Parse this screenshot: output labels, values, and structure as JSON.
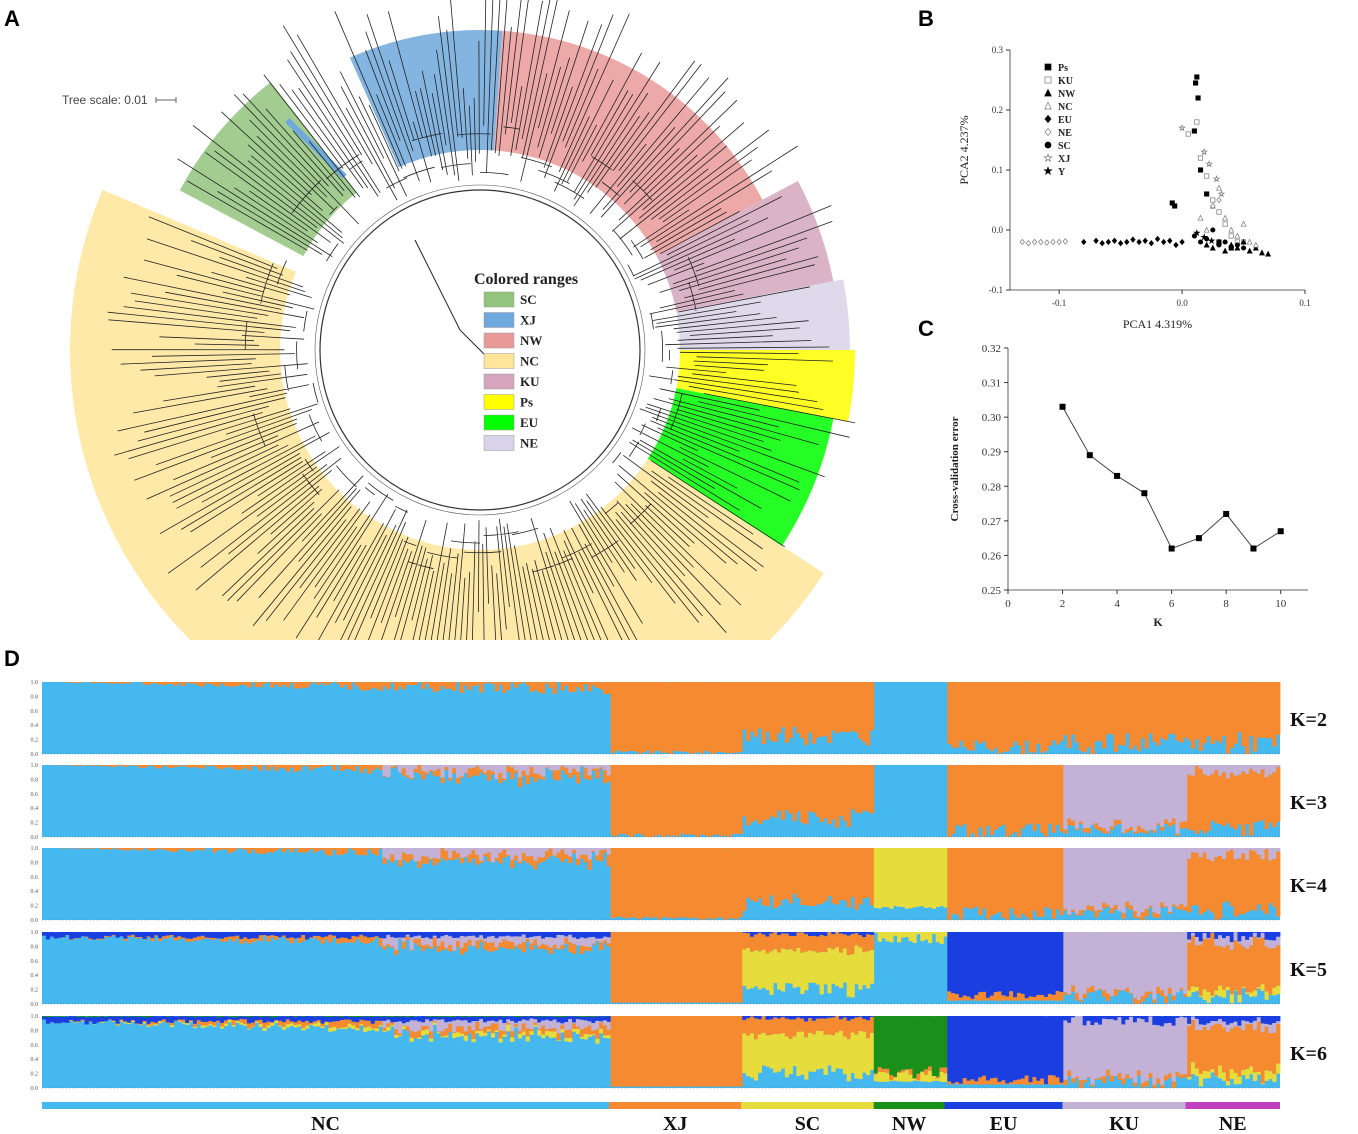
{
  "panels": {
    "a": "A",
    "b": "B",
    "c": "C",
    "d": "D"
  },
  "tree": {
    "scale_label": "Tree scale: 0.01",
    "legend_title": "Colored ranges",
    "legend": [
      {
        "label": "SC",
        "color": "#93c47d"
      },
      {
        "label": "XJ",
        "color": "#6fa8dc"
      },
      {
        "label": "NW",
        "color": "#ea9999"
      },
      {
        "label": "NC",
        "color": "#ffe599"
      },
      {
        "label": "KU",
        "color": "#d5a6bd"
      },
      {
        "label": "Ps",
        "color": "#ffff00"
      },
      {
        "label": "EU",
        "color": "#00ff00"
      },
      {
        "label": "NE",
        "color": "#d9d2e9"
      }
    ]
  },
  "chart_data": [
    {
      "type": "scatter",
      "title": "",
      "xlabel": "PCA1  4.319%",
      "ylabel": "PCA2 4.237%",
      "xlim": [
        -0.14,
        0.1
      ],
      "ylim": [
        -0.1,
        0.3
      ],
      "xticks": [
        -0.1,
        0,
        0.1
      ],
      "xtick_labels": [
        "-0.1",
        "0.0",
        "0.1"
      ],
      "yticks": [
        -0.1,
        0,
        0.1,
        0.2,
        0.3
      ],
      "ytick_labels": [
        "-0.1",
        "0.0",
        "0.1",
        "0.2",
        "0.3"
      ],
      "legend": [
        {
          "label": "Ps",
          "marker": "square-filled"
        },
        {
          "label": "KU",
          "marker": "square-open"
        },
        {
          "label": "NW",
          "marker": "triangle-filled"
        },
        {
          "label": "NC",
          "marker": "triangle-open"
        },
        {
          "label": "EU",
          "marker": "diamond-filled"
        },
        {
          "label": "NE",
          "marker": "diamond-open"
        },
        {
          "label": "SC",
          "marker": "circle-filled"
        },
        {
          "label": "XJ",
          "marker": "star-open"
        },
        {
          "label": "Y",
          "marker": "star-filled"
        }
      ],
      "series": [
        {
          "name": "Ps",
          "marker": "square-filled",
          "points": [
            [
              0.012,
              0.255
            ],
            [
              0.011,
              0.245
            ],
            [
              0.013,
              0.22
            ],
            [
              0.01,
              0.165
            ],
            [
              -0.008,
              0.045
            ],
            [
              -0.006,
              0.04
            ],
            [
              0.015,
              0.1
            ],
            [
              0.02,
              0.06
            ],
            [
              0.03,
              -0.02
            ],
            [
              0.04,
              -0.03
            ]
          ]
        },
        {
          "name": "KU",
          "marker": "square-open",
          "points": [
            [
              0.005,
              0.16
            ],
            [
              0.012,
              0.18
            ],
            [
              0.015,
              0.12
            ],
            [
              0.02,
              0.09
            ],
            [
              0.025,
              0.05
            ],
            [
              0.03,
              0.03
            ],
            [
              0.035,
              0.01
            ],
            [
              0.04,
              -0.01
            ],
            [
              0.045,
              -0.02
            ],
            [
              0.05,
              -0.02
            ]
          ]
        },
        {
          "name": "NW",
          "marker": "triangle-filled",
          "points": [
            [
              0.02,
              -0.025
            ],
            [
              0.025,
              -0.03
            ],
            [
              0.03,
              -0.02
            ],
            [
              0.035,
              -0.035
            ],
            [
              0.04,
              -0.025
            ],
            [
              0.045,
              -0.03
            ],
            [
              0.05,
              -0.02
            ],
            [
              0.055,
              -0.035
            ],
            [
              0.06,
              -0.03
            ],
            [
              0.065,
              -0.038
            ],
            [
              0.07,
              -0.04
            ]
          ]
        },
        {
          "name": "NC",
          "marker": "triangle-open",
          "points": [
            [
              0.015,
              0.02
            ],
            [
              0.02,
              0.0
            ],
            [
              0.025,
              0.04
            ],
            [
              0.03,
              0.07
            ],
            [
              0.035,
              0.02
            ],
            [
              0.04,
              0.0
            ],
            [
              0.045,
              -0.01
            ],
            [
              0.05,
              0.01
            ],
            [
              0.055,
              -0.02
            ],
            [
              0.06,
              -0.025
            ]
          ]
        },
        {
          "name": "EU",
          "marker": "diamond-filled",
          "points": [
            [
              -0.08,
              -0.02
            ],
            [
              -0.07,
              -0.018
            ],
            [
              -0.065,
              -0.022
            ],
            [
              -0.06,
              -0.02
            ],
            [
              -0.055,
              -0.018
            ],
            [
              -0.05,
              -0.022
            ],
            [
              -0.045,
              -0.02
            ],
            [
              -0.04,
              -0.016
            ],
            [
              -0.035,
              -0.02
            ],
            [
              -0.03,
              -0.018
            ],
            [
              -0.025,
              -0.022
            ],
            [
              -0.02,
              -0.015
            ],
            [
              -0.015,
              -0.02
            ],
            [
              -0.01,
              -0.018
            ],
            [
              -0.005,
              -0.025
            ],
            [
              0.0,
              -0.02
            ]
          ]
        },
        {
          "name": "NE",
          "marker": "diamond-open",
          "points": [
            [
              -0.13,
              -0.02
            ],
            [
              -0.125,
              -0.022
            ],
            [
              -0.12,
              -0.02
            ],
            [
              -0.115,
              -0.02
            ],
            [
              -0.11,
              -0.021
            ],
            [
              -0.105,
              -0.02
            ],
            [
              -0.1,
              -0.02
            ],
            [
              -0.095,
              -0.019
            ],
            [
              0.025,
              0.04
            ],
            [
              0.03,
              0.05
            ]
          ]
        },
        {
          "name": "SC",
          "marker": "circle-filled",
          "points": [
            [
              0.01,
              -0.01
            ],
            [
              0.015,
              -0.02
            ],
            [
              0.02,
              -0.015
            ],
            [
              0.025,
              0.0
            ],
            [
              0.03,
              -0.025
            ],
            [
              0.035,
              -0.02
            ],
            [
              0.04,
              -0.028
            ],
            [
              0.045,
              -0.025
            ],
            [
              0.05,
              -0.03
            ]
          ]
        },
        {
          "name": "XJ",
          "marker": "star-open",
          "points": [
            [
              0.0,
              0.17
            ],
            [
              0.018,
              0.13
            ],
            [
              0.022,
              0.11
            ],
            [
              0.028,
              0.085
            ],
            [
              0.032,
              0.06
            ]
          ]
        },
        {
          "name": "Y",
          "marker": "star-filled",
          "points": [
            [
              0.012,
              -0.005
            ],
            [
              0.018,
              -0.012
            ],
            [
              0.024,
              -0.018
            ]
          ]
        }
      ]
    },
    {
      "type": "line",
      "title": "",
      "xlabel": "K",
      "ylabel": "Cross-validation error",
      "xlim": [
        0,
        11
      ],
      "ylim": [
        0.25,
        0.32
      ],
      "xticks": [
        0,
        2,
        4,
        6,
        8,
        10
      ],
      "yticks": [
        0.25,
        0.26,
        0.27,
        0.28,
        0.29,
        0.3,
        0.31,
        0.32
      ],
      "ytick_labels": [
        "0.25",
        "0.26",
        "0.27",
        "0.28",
        "0.29",
        "0.30",
        "0.31",
        "0.32"
      ],
      "x": [
        2,
        3,
        4,
        5,
        6,
        7,
        8,
        9,
        10
      ],
      "values": [
        0.303,
        0.289,
        0.283,
        0.278,
        0.262,
        0.265,
        0.272,
        0.262,
        0.267
      ]
    },
    {
      "type": "bar",
      "subtype": "stacked-admixture",
      "title": "",
      "yticks": [
        0,
        0.2,
        0.4,
        0.6,
        0.8,
        1.0
      ],
      "ytick_labels": [
        "0.0",
        "0.2",
        "0.4",
        "0.6",
        "0.8",
        "1.0"
      ],
      "cluster_colors": [
        "#45b8f0",
        "#f58a30",
        "#c4b2d6",
        "#e6dc3c",
        "#1a3ee0",
        "#1a8f1a"
      ],
      "groups": [
        {
          "label": "NC",
          "color": "#45b8f0",
          "start": 0.0,
          "end": 0.6
        },
        {
          "label": "XJ",
          "color": "#f58a30",
          "start": 0.6,
          "end": 0.74
        },
        {
          "label": "SC",
          "color": "#e6dc3c",
          "start": 0.74,
          "end": 0.88
        },
        {
          "label": "NW",
          "color": "#1a8f1a",
          "start": 0.88,
          "end": 0.955
        },
        {
          "label": "EU",
          "color": "#1a3ee0",
          "start": 0.955,
          "end": 1.08
        },
        {
          "label": "KU",
          "color": "#c4b2d6",
          "start": 1.08,
          "end": 1.21
        },
        {
          "label": "NE",
          "color": "#c040c0",
          "start": 1.21,
          "end": 1.31
        }
      ],
      "rows": [
        {
          "label": "K=2",
          "k": 2
        },
        {
          "label": "K=3",
          "k": 3
        },
        {
          "label": "K=4",
          "k": 4
        },
        {
          "label": "K=5",
          "k": 5
        },
        {
          "label": "K=6",
          "k": 6
        }
      ]
    }
  ]
}
